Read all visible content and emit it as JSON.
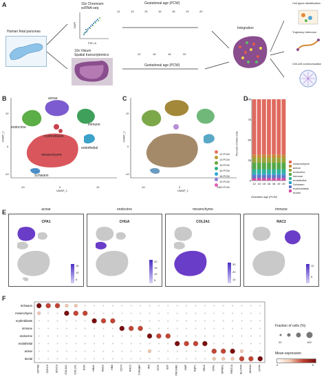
{
  "panels": {
    "A": "A",
    "B": "B",
    "C": "C",
    "D": "D",
    "E": "E",
    "F": "F"
  },
  "panel_a": {
    "tissue_label": "Human fetal pancreas",
    "sc_method": "10x Chromium\nscRNA-seq",
    "sc_xlabel": "FSC-A",
    "sc_ylabel": "DAPI",
    "st_method": "10x Visium\nSpatial transcriptomics",
    "age_title_top": "Gestational age (PCW)",
    "age_title_bottom": "Gestational age (PCW)",
    "ages_top": [
      "12",
      "13",
      "15",
      "16",
      "18",
      "19",
      "20"
    ],
    "ages_bottom": [
      "12",
      "15",
      "18",
      "20"
    ],
    "integration_label": "Integration",
    "outputs": [
      "Cell types identification",
      "Trajectory inference",
      "Cell-cell communication"
    ]
  },
  "panel_b": {
    "labels": [
      "acinar",
      "endocrine",
      "erythroblasts",
      "immune",
      "endothelial",
      "mesenchyme",
      "Schwann"
    ],
    "xlabel": "UMAP_1",
    "ylabel": "UMAP_2",
    "xticks": [
      "-10",
      "0",
      "10"
    ],
    "yticks": [
      "10",
      "0",
      "-10"
    ]
  },
  "panel_c": {
    "xlabel": "UMAP_1",
    "ylabel": "UMAP_2",
    "xticks": [
      "-10",
      "0",
      "10"
    ],
    "yticks": [
      "10",
      "0",
      "-10"
    ],
    "legend": [
      {
        "label": "12 PCW",
        "color": "#e8725c"
      },
      {
        "label": "13 PCW",
        "color": "#b79a2c"
      },
      {
        "label": "15 PCW",
        "color": "#67a634"
      },
      {
        "label": "16 PCW",
        "color": "#2bb083"
      },
      {
        "label": "18 PCW",
        "color": "#27a9d4"
      },
      {
        "label": "19 PCW",
        "color": "#8e7ee0"
      },
      {
        "label": "20 PCW",
        "color": "#e65cb8"
      }
    ]
  },
  "chart_data": {
    "type": "bar",
    "categories": [
      "12",
      "13",
      "15",
      "16",
      "18",
      "19",
      "20"
    ],
    "xlabel": "Gestation age (PCW)",
    "ylabel": "Percent of total cells",
    "ylim": [
      0,
      100
    ],
    "yticks": [
      "0",
      "25",
      "50",
      "75",
      "100"
    ],
    "series": [
      {
        "name": "ductal",
        "color": "#d64ca4",
        "values": [
          3,
          3,
          3,
          3,
          3,
          3,
          3
        ]
      },
      {
        "name": "erythroblasts",
        "color": "#5f77c9",
        "values": [
          4,
          4,
          4,
          4,
          4,
          4,
          4
        ]
      },
      {
        "name": "Schwann",
        "color": "#2aa4c8",
        "values": [
          2,
          2,
          2,
          2,
          2,
          2,
          2
        ]
      },
      {
        "name": "endothelial",
        "color": "#32b39a",
        "values": [
          5,
          5,
          5,
          5,
          5,
          5,
          5
        ]
      },
      {
        "name": "immune",
        "color": "#55a84a",
        "values": [
          8,
          8,
          8,
          8,
          8,
          8,
          8
        ]
      },
      {
        "name": "endocrine",
        "color": "#9aa43c",
        "values": [
          6,
          6,
          6,
          6,
          6,
          6,
          6
        ]
      },
      {
        "name": "acinar",
        "color": "#c58a3a",
        "values": [
          4,
          4,
          4,
          4,
          4,
          4,
          4
        ]
      },
      {
        "name": "mesenchyme",
        "color": "#e06a5e",
        "values": [
          68,
          68,
          68,
          68,
          68,
          68,
          68
        ]
      }
    ]
  },
  "panel_e": {
    "features": [
      {
        "celltype": "acinar",
        "gene": "CPA1",
        "legend": [
          "15",
          "10",
          "5"
        ]
      },
      {
        "celltype": "endocrine",
        "gene": "CHGA",
        "legend": [
          "20",
          "15",
          "10",
          "5"
        ]
      },
      {
        "celltype": "mesenchyme",
        "gene": "COL3A1",
        "legend": [
          "30",
          "20",
          "10"
        ]
      },
      {
        "celltype": "immune",
        "gene": "RAC2",
        "legend": [
          "10",
          "5"
        ]
      }
    ]
  },
  "panel_f": {
    "rows": [
      "Schwann",
      "mesenchyme",
      "erythroblasts",
      "immune",
      "endocrine",
      "endothelial",
      "acinar",
      "ductal"
    ],
    "genes": [
      "CRYAB",
      "CDH19",
      "SOX10",
      "COL3A1",
      "COL1A1",
      "DCN",
      "HBA1",
      "HBG2",
      "HBB",
      "CD74",
      "RAC2",
      "TYROBP",
      "INS",
      "GCG",
      "SST",
      "PECAM1",
      "VWF",
      "AQP1",
      "SELE",
      "CPA1",
      "SPINK1",
      "REG1A",
      "SLC4A4",
      "ANXA4",
      "CFTR"
    ],
    "size_legend_title": "Fraction of cells (%)",
    "size_legend_ticks": [
      "20",
      "100"
    ],
    "color_legend_title": "Mean expression",
    "color_legend_ticks": [
      "0",
      "6"
    ]
  }
}
